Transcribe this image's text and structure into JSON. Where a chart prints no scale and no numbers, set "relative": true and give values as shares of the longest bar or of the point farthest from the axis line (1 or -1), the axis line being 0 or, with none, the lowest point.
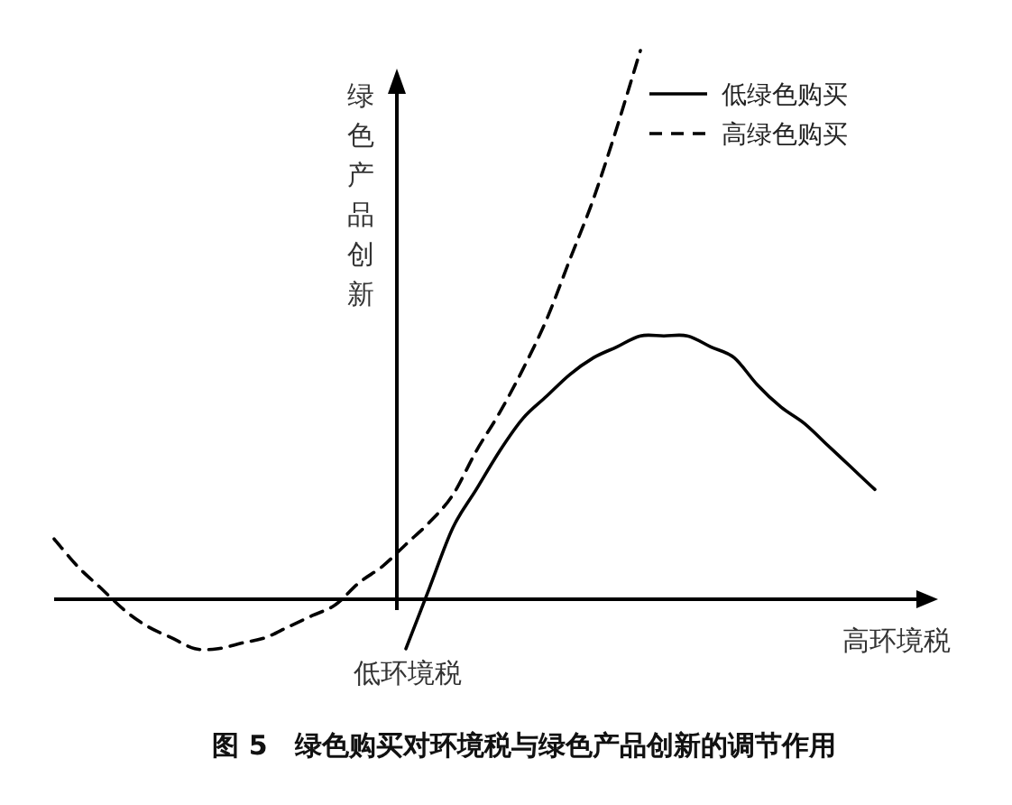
{
  "chart_data": {
    "type": "line",
    "title": "图 5　绿色购买对环境税与绿色产品创新的调节作用",
    "xlabel": "高环境税",
    "ylabel": "绿色产品创新",
    "annotations": [
      "低环境税"
    ],
    "relative": true,
    "legend": "top right",
    "categories": [
      null,
      null,
      null,
      null,
      null,
      null,
      null,
      null,
      null,
      null,
      null,
      null,
      null,
      null,
      null,
      null,
      null,
      null,
      null,
      null,
      null,
      null,
      null,
      null,
      null,
      null,
      null,
      null,
      null,
      null,
      null,
      null,
      null,
      null,
      null,
      null
    ],
    "series": [
      {
        "name": "低绿色购买",
        "color": "#000000",
        "line_style": "solid",
        "values": [
          null,
          null,
          null,
          null,
          null,
          null,
          null,
          null,
          null,
          null,
          null,
          null,
          null,
          null,
          null,
          -0.09,
          0.02,
          0.13,
          0.2,
          0.27,
          0.33,
          0.37,
          0.41,
          0.44,
          0.46,
          0.48,
          0.48,
          0.48,
          0.46,
          0.44,
          0.39,
          0.35,
          0.32,
          0.28,
          0.24,
          0.2
        ]
      },
      {
        "name": "高绿色购买",
        "color": "#000000",
        "line_style": "dashed",
        "values": [
          0.11,
          0.06,
          0.02,
          -0.02,
          -0.05,
          -0.07,
          -0.09,
          -0.09,
          -0.08,
          -0.07,
          -0.05,
          -0.03,
          -0.01,
          0.03,
          0.06,
          0.1,
          0.14,
          0.19,
          0.27,
          0.34,
          0.42,
          0.51,
          0.62,
          0.73,
          0.86,
          1.0,
          null,
          null,
          null,
          null,
          null,
          null,
          null,
          null,
          null,
          null
        ]
      }
    ]
  }
}
